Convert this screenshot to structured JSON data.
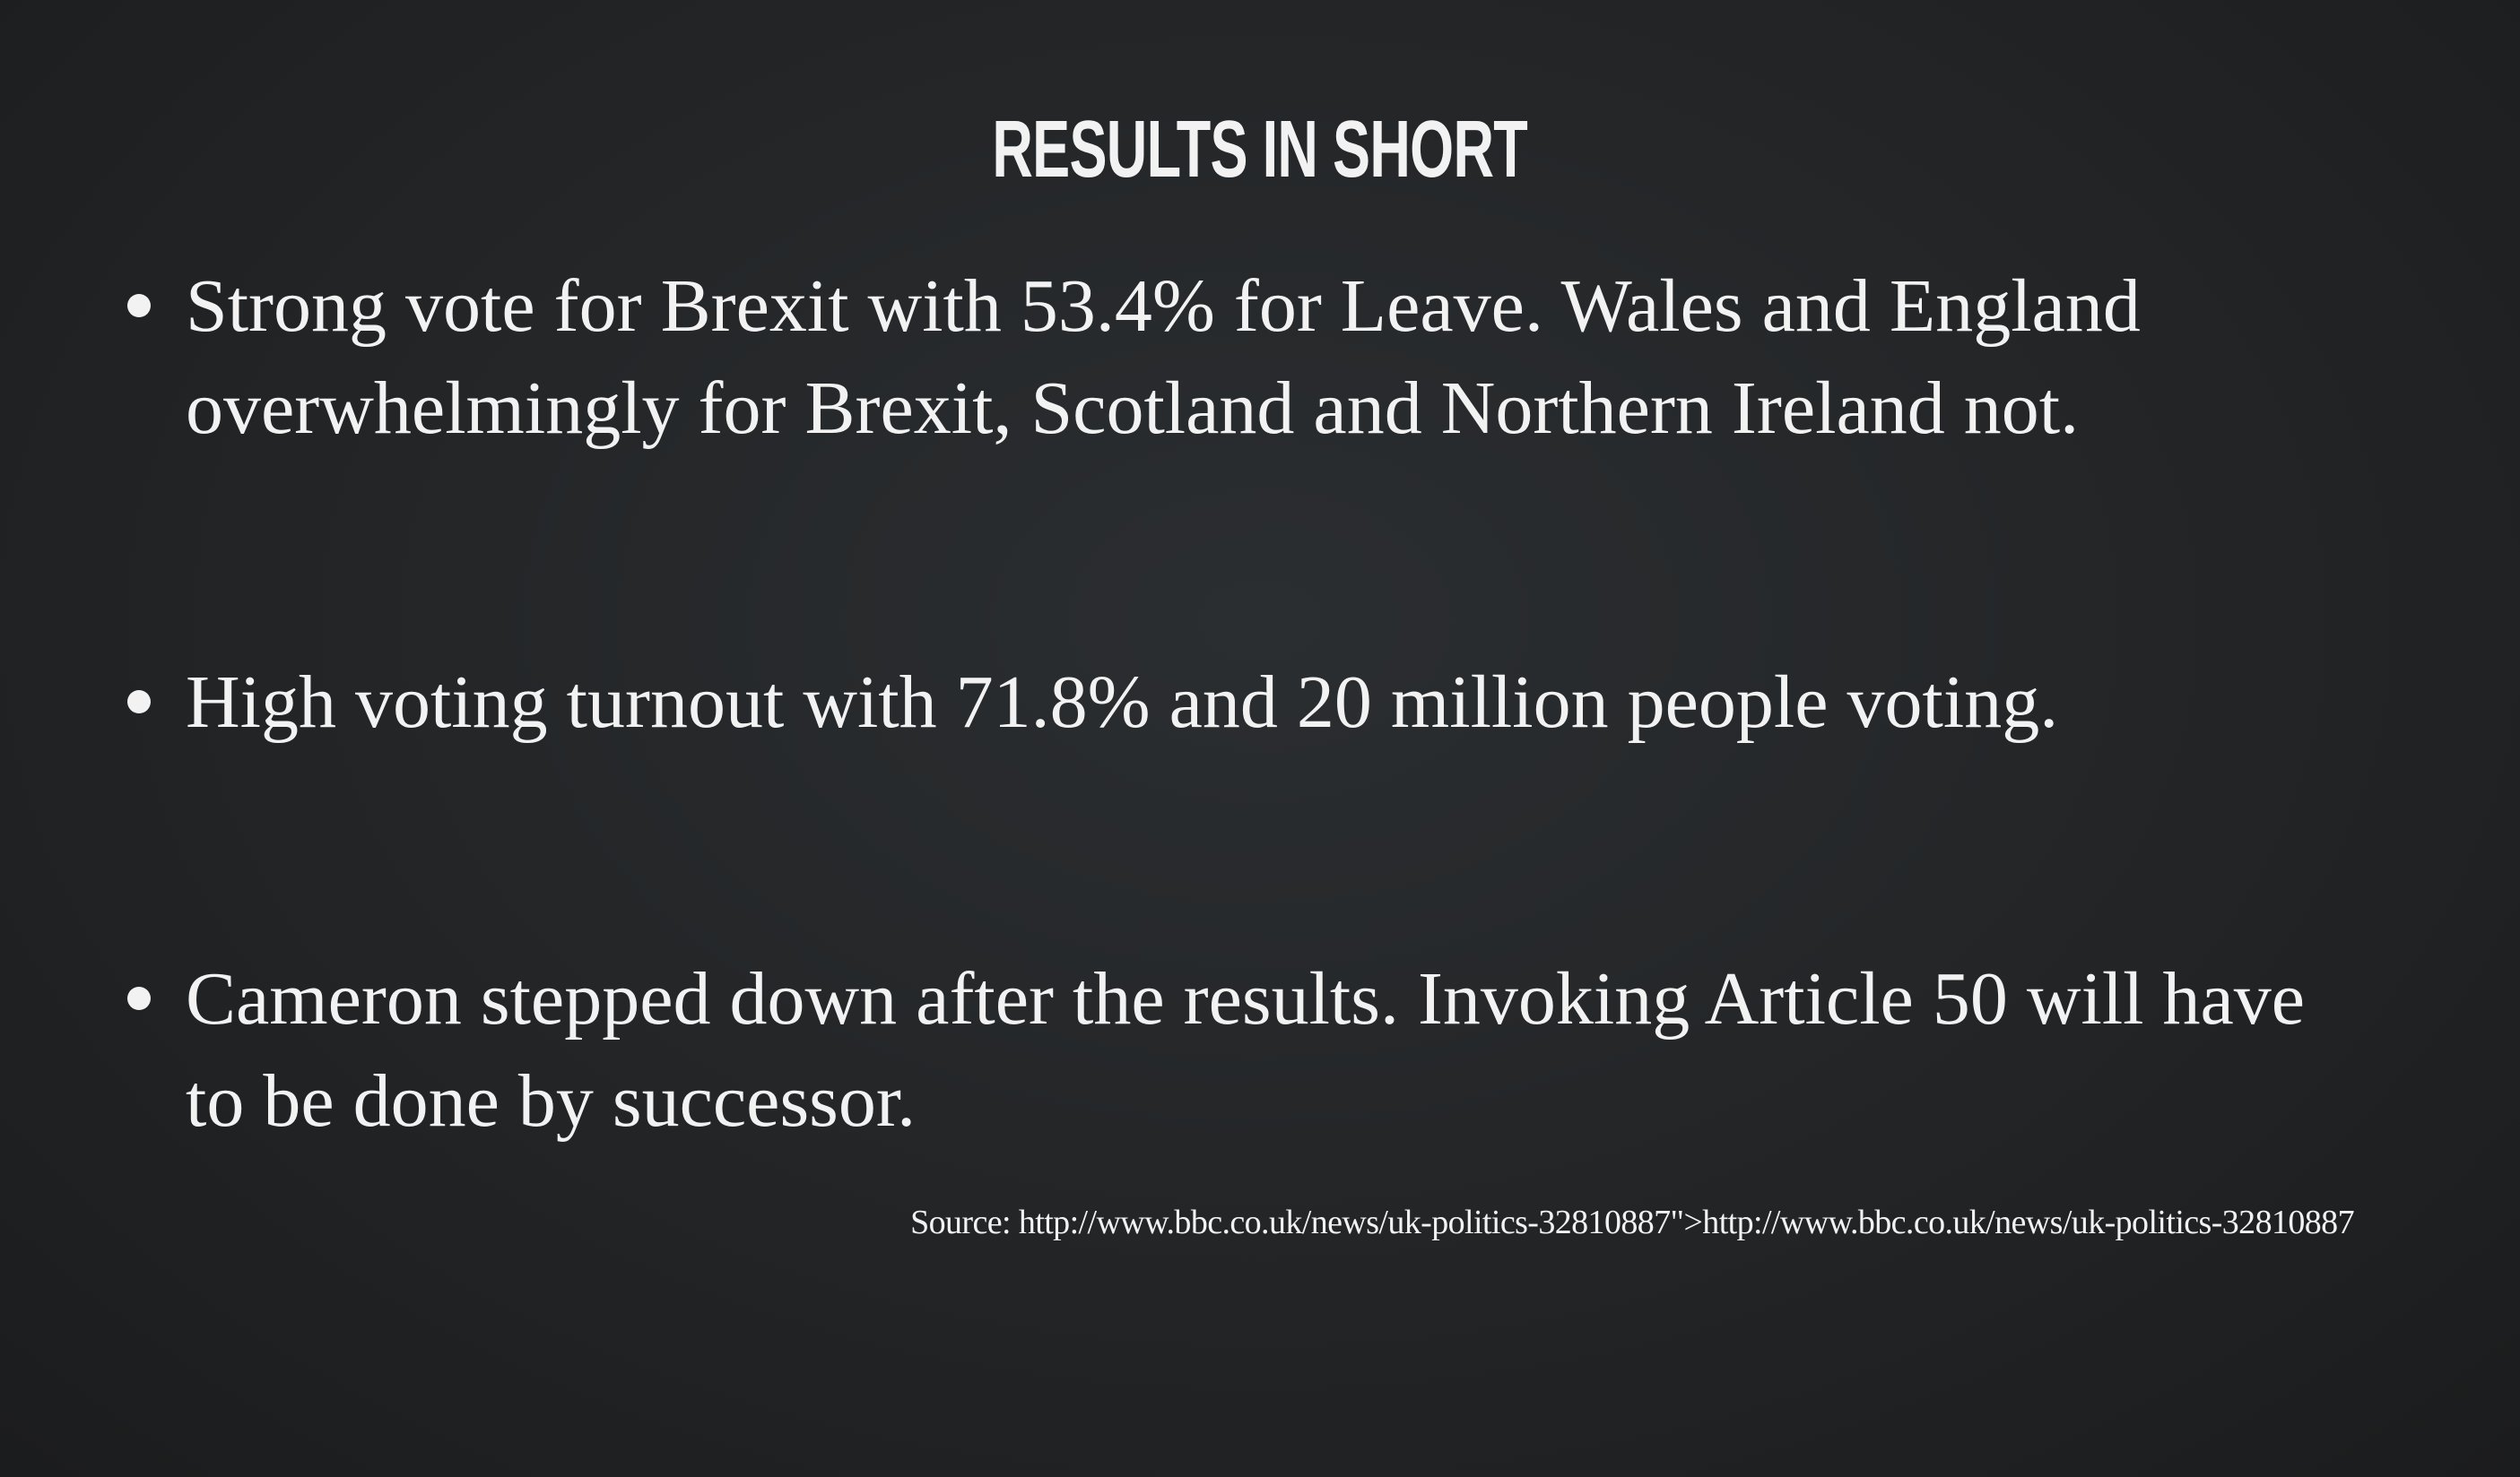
{
  "slide": {
    "title": "RESULTS IN SHORT",
    "bullets": [
      {
        "line1": "Strong vote for Brexit with 53.4% for Leave. Wales and England",
        "line2": "overwhelmingly for Brexit, Scotland and Northern Ireland not."
      },
      {
        "line1": "High voting turnout with 71.8% and 20 million people voting."
      },
      {
        "line1": "Cameron stepped down after the results. Invoking Article 50 will have",
        "line2": "to be done by successor."
      }
    ],
    "source": "Source: http://www.bbc.co.uk/news/uk-politics-32810887\">http://www.bbc.co.uk/news/uk-politics-32810887"
  },
  "colors": {
    "text": "#f2f2f2",
    "background": "#242628"
  }
}
